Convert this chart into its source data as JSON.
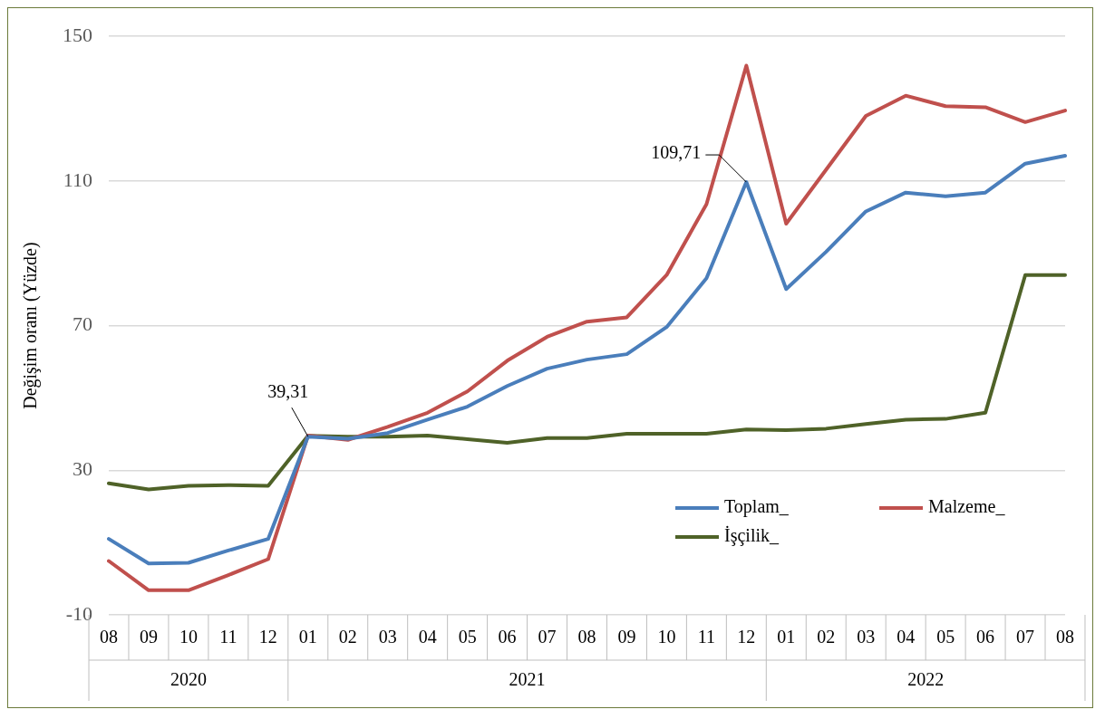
{
  "chart_data": {
    "type": "line",
    "ylabel": "Değişim oranı (Yüzde)",
    "categories": [
      "08",
      "09",
      "10",
      "11",
      "12",
      "01",
      "02",
      "03",
      "04",
      "05",
      "06",
      "07",
      "08",
      "09",
      "10",
      "11",
      "12",
      "01",
      "02",
      "03",
      "04",
      "05",
      "06",
      "07",
      "08"
    ],
    "series": [
      {
        "name": "Toplam_",
        "color": "#4a7ebb",
        "values": [
          11.0,
          4.2,
          4.4,
          7.8,
          11.0,
          39.31,
          38.7,
          40.3,
          44.0,
          47.6,
          53.3,
          58.1,
          60.6,
          62.1,
          69.6,
          83.1,
          109.71,
          80.1,
          90.4,
          101.6,
          106.8,
          105.8,
          106.8,
          114.8,
          117.0
        ],
        "value_labels": [
          null,
          null,
          null,
          null,
          null,
          "39,31",
          null,
          null,
          null,
          null,
          null,
          null,
          null,
          null,
          null,
          null,
          "109,71",
          null,
          null,
          null,
          null,
          null,
          null,
          null,
          null
        ]
      },
      {
        "name": "Malzeme_",
        "color": "#c0504d",
        "values": [
          4.9,
          -3.2,
          -3.2,
          1.0,
          5.4,
          39.6,
          38.4,
          42.0,
          45.9,
          51.8,
          60.3,
          66.9,
          71.1,
          72.3,
          84.0,
          103.6,
          141.9,
          98.2,
          113.1,
          128.0,
          133.6,
          130.7,
          130.4,
          126.3,
          129.5
        ]
      },
      {
        "name": "İşçilik_",
        "color": "#4f6228",
        "values": [
          26.4,
          24.7,
          25.7,
          25.9,
          25.7,
          39.5,
          39.3,
          39.3,
          39.6,
          38.6,
          37.6,
          38.9,
          38.9,
          40.1,
          40.1,
          40.1,
          41.3,
          41.1,
          41.5,
          42.8,
          44.0,
          44.2,
          45.9,
          84.0,
          84.0
        ]
      }
    ],
    "ylim": [
      -10,
      150
    ],
    "yticks": [
      -10,
      30,
      70,
      110,
      150
    ],
    "grid": "y",
    "legend": "bottom right",
    "marker": "none",
    "line_style": "solid",
    "annotations": [
      "2020",
      "2021",
      "2022"
    ]
  }
}
